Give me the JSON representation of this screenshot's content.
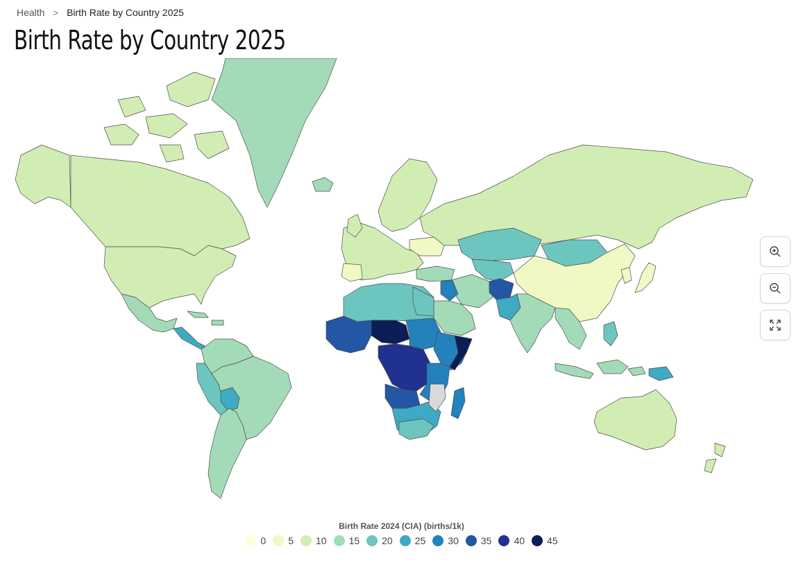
{
  "breadcrumb": {
    "home": "Health",
    "separator": ">",
    "current": "Birth Rate by Country 2025"
  },
  "title": "Birth Rate by Country 2025",
  "legend": {
    "title": "Birth Rate 2024 (CIA) (births/1k)",
    "items": [
      {
        "label": "0",
        "color": "#ffffd9"
      },
      {
        "label": "5",
        "color": "#f0f9c4"
      },
      {
        "label": "10",
        "color": "#d2edb4"
      },
      {
        "label": "15",
        "color": "#a3dbb8"
      },
      {
        "label": "20",
        "color": "#6cc6bf"
      },
      {
        "label": "25",
        "color": "#3eaac3"
      },
      {
        "label": "30",
        "color": "#2381bc"
      },
      {
        "label": "35",
        "color": "#2356a4"
      },
      {
        "label": "40",
        "color": "#20318f"
      },
      {
        "label": "45",
        "color": "#0b1d56"
      }
    ]
  },
  "no_data_color": "#d9d9d9",
  "controls": {
    "zoom_in": "zoom-in-icon",
    "zoom_out": "zoom-out-icon",
    "fullscreen": "fullscreen-icon"
  }
}
